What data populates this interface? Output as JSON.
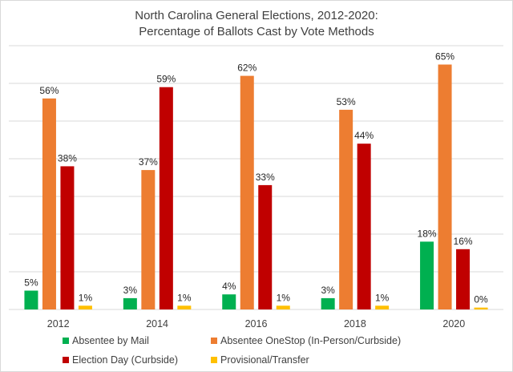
{
  "chart_data": {
    "type": "bar",
    "title": "North Carolina General Elections, 2012-2020:",
    "subtitle": "Percentage of Ballots Cast by Vote Methods",
    "xlabel": "",
    "ylabel": "",
    "categories": [
      "2012",
      "2014",
      "2016",
      "2018",
      "2020"
    ],
    "ylim": [
      0,
      70
    ],
    "gridlines": [
      0,
      10,
      20,
      30,
      40,
      50,
      60,
      70
    ],
    "grid": true,
    "y_axis_labels_shown": false,
    "legend_position": "bottom",
    "series": [
      {
        "name": "Absentee by Mail",
        "color": "#00b050",
        "values": [
          5,
          3,
          4,
          3,
          18
        ],
        "labels": [
          "5%",
          "3%",
          "4%",
          "3%",
          "18%"
        ]
      },
      {
        "name": "Absentee OneStop (In-Person/Curbside)",
        "color": "#ed7d31",
        "values": [
          56,
          37,
          62,
          53,
          65
        ],
        "labels": [
          "56%",
          "37%",
          "62%",
          "53%",
          "65%"
        ]
      },
      {
        "name": "Election Day (Curbside)",
        "color": "#c00000",
        "values": [
          38,
          59,
          33,
          44,
          16
        ],
        "labels": [
          "38%",
          "59%",
          "33%",
          "44%",
          "16%"
        ]
      },
      {
        "name": "Provisional/Transfer",
        "color": "#ffc000",
        "values": [
          1,
          1,
          1,
          1,
          0.5
        ],
        "labels": [
          "1%",
          "1%",
          "1%",
          "1%",
          "0%"
        ]
      }
    ]
  }
}
